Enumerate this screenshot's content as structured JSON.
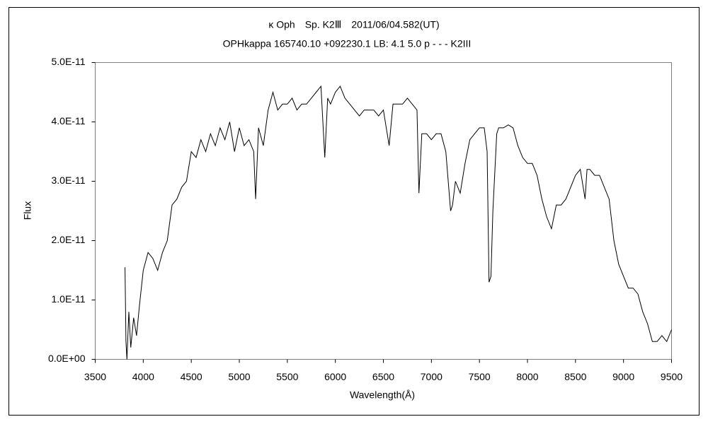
{
  "chart_data": {
    "type": "line",
    "title": "κ Oph　Sp. K2Ⅲ　2011/06/04.582(UT)",
    "subtitle": "OPHkappa 165740.10 +092230.1 LB: 4.1 5.0 p - - - K2III",
    "xlabel": "Wavelength(Å)",
    "ylabel": "Flux",
    "xlim": [
      3500,
      9500
    ],
    "xticks": [
      3500,
      4000,
      4500,
      5000,
      5500,
      6000,
      6500,
      7000,
      7500,
      8000,
      8500,
      9000,
      9500
    ],
    "ylim": [
      0,
      5e-11
    ],
    "yticks": [
      {
        "value": 0,
        "label": "0.0E+00"
      },
      {
        "value": 1e-11,
        "label": "1.0E-11"
      },
      {
        "value": 2e-11,
        "label": "2.0E-11"
      },
      {
        "value": 3e-11,
        "label": "3.0E-11"
      },
      {
        "value": 4e-11,
        "label": "4.0E-11"
      },
      {
        "value": 5e-11,
        "label": "5.0E-11"
      }
    ],
    "grid": false,
    "color": "#000000",
    "x": [
      3810,
      3820,
      3830,
      3850,
      3870,
      3900,
      3930,
      3960,
      3980,
      4000,
      4050,
      4100,
      4150,
      4200,
      4250,
      4300,
      4350,
      4400,
      4450,
      4500,
      4550,
      4600,
      4650,
      4700,
      4750,
      4800,
      4850,
      4900,
      4950,
      5000,
      5050,
      5100,
      5150,
      5170,
      5200,
      5250,
      5300,
      5350,
      5400,
      5450,
      5500,
      5550,
      5600,
      5650,
      5700,
      5750,
      5800,
      5850,
      5890,
      5920,
      5950,
      6000,
      6050,
      6100,
      6150,
      6200,
      6250,
      6300,
      6350,
      6400,
      6450,
      6500,
      6560,
      6600,
      6650,
      6700,
      6750,
      6800,
      6850,
      6870,
      6900,
      6950,
      7000,
      7050,
      7100,
      7150,
      7200,
      7220,
      7250,
      7300,
      7350,
      7400,
      7450,
      7500,
      7550,
      7580,
      7600,
      7620,
      7640,
      7680,
      7700,
      7750,
      7800,
      7850,
      7900,
      7950,
      8000,
      8050,
      8100,
      8150,
      8200,
      8250,
      8300,
      8350,
      8400,
      8450,
      8500,
      8550,
      8600,
      8620,
      8650,
      8700,
      8750,
      8800,
      8850,
      8900,
      8950,
      9000,
      9050,
      9100,
      9150,
      9200,
      9250,
      9300,
      9350,
      9400,
      9450,
      9500
    ],
    "values": [
      1.55e-11,
      3e-12,
      0,
      8e-12,
      2e-12,
      7e-12,
      4e-12,
      9e-12,
      1.2e-11,
      1.5e-11,
      1.8e-11,
      1.7e-11,
      1.5e-11,
      1.8e-11,
      2e-11,
      2.6e-11,
      2.7e-11,
      2.9e-11,
      3e-11,
      3.5e-11,
      3.4e-11,
      3.7e-11,
      3.5e-11,
      3.8e-11,
      3.6e-11,
      3.9e-11,
      3.7e-11,
      4e-11,
      3.5e-11,
      3.9e-11,
      3.6e-11,
      3.7e-11,
      3.5e-11,
      2.7e-11,
      3.9e-11,
      3.6e-11,
      4.2e-11,
      4.5e-11,
      4.2e-11,
      4.3e-11,
      4.3e-11,
      4.4e-11,
      4.2e-11,
      4.3e-11,
      4.3e-11,
      4.4e-11,
      4.5e-11,
      4.6e-11,
      3.4e-11,
      4.4e-11,
      4.3e-11,
      4.5e-11,
      4.6e-11,
      4.4e-11,
      4.3e-11,
      4.2e-11,
      4.1e-11,
      4.2e-11,
      4.2e-11,
      4.2e-11,
      4.1e-11,
      4.2e-11,
      3.6e-11,
      4.3e-11,
      4.3e-11,
      4.3e-11,
      4.4e-11,
      4.3e-11,
      4.2e-11,
      2.8e-11,
      3.8e-11,
      3.8e-11,
      3.7e-11,
      3.8e-11,
      3.8e-11,
      3.5e-11,
      2.5e-11,
      2.6e-11,
      3e-11,
      2.8e-11,
      3.3e-11,
      3.7e-11,
      3.8e-11,
      3.9e-11,
      3.9e-11,
      3.5e-11,
      1.3e-11,
      1.4e-11,
      2.5e-11,
      3.8e-11,
      3.9e-11,
      3.9e-11,
      3.95e-11,
      3.9e-11,
      3.6e-11,
      3.4e-11,
      3.3e-11,
      3.3e-11,
      3.1e-11,
      2.7e-11,
      2.4e-11,
      2.2e-11,
      2.6e-11,
      2.6e-11,
      2.7e-11,
      2.9e-11,
      3.1e-11,
      3.2e-11,
      2.7e-11,
      3.2e-11,
      3.2e-11,
      3.1e-11,
      3.1e-11,
      2.9e-11,
      2.7e-11,
      2e-11,
      1.6e-11,
      1.4e-11,
      1.2e-11,
      1.2e-11,
      1.1e-11,
      8e-12,
      6e-12,
      3e-12,
      3e-12,
      4e-12,
      3e-12,
      5e-12
    ]
  }
}
